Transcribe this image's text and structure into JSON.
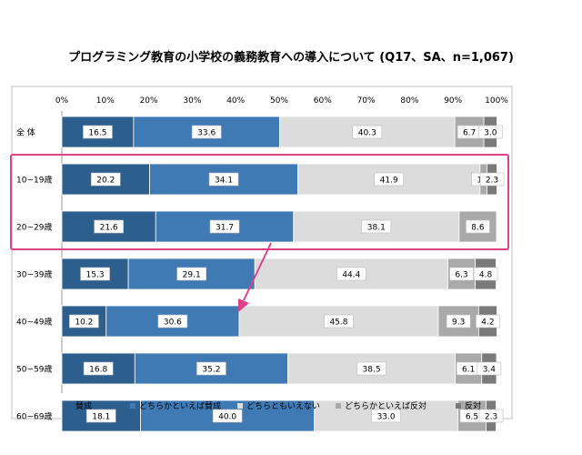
{
  "chart_data": {
    "type": "bar",
    "stacked": true,
    "orientation": "horizontal",
    "title": "プログラミング教育の小学校の義務教育への導入について (Q17、SA、n=1,067)",
    "x_ticks": [
      "0%",
      "10%",
      "20%",
      "30%",
      "40%",
      "50%",
      "60%",
      "70%",
      "80%",
      "90%",
      "100%"
    ],
    "xlim": [
      0,
      100
    ],
    "legend_position": "bottom",
    "categories": [
      "全 体",
      "10~19歳",
      "20~29歳",
      "30~39歳",
      "40~49歳",
      "50~59歳",
      "60~69歳"
    ],
    "series": [
      {
        "name": "賛成",
        "color": "#2d5f8e",
        "values": [
          16.5,
          20.2,
          21.6,
          15.3,
          10.2,
          16.8,
          18.1
        ]
      },
      {
        "name": "どちらかといえば賛成",
        "color": "#3f7ab5",
        "values": [
          33.6,
          34.1,
          31.7,
          29.1,
          30.6,
          35.2,
          40.0
        ]
      },
      {
        "name": "どちらともいえない",
        "color": "#dcdcdc",
        "values": [
          40.3,
          41.9,
          38.1,
          44.4,
          45.8,
          38.5,
          33.0
        ]
      },
      {
        "name": "どちらかといえば反対",
        "color": "#a9a9a9",
        "values": [
          6.7,
          1.6,
          8.6,
          6.3,
          9.3,
          6.1,
          6.5
        ]
      },
      {
        "name": "反対",
        "color": "#7a7a7a",
        "values": [
          3.0,
          2.3,
          0.0,
          4.8,
          4.2,
          3.4,
          2.3
        ]
      }
    ],
    "labels": [
      [
        "16.5",
        "33.6",
        "40.3",
        "6.7",
        "3.0"
      ],
      [
        "20.2",
        "34.1",
        "41.9",
        "1.6",
        "2.3"
      ],
      [
        "21.6",
        "31.7",
        "38.1",
        "8.6",
        ""
      ],
      [
        "15.3",
        "29.1",
        "44.4",
        "6.3",
        "4.8"
      ],
      [
        "10.2",
        "30.6",
        "45.8",
        "9.3",
        "4.2"
      ],
      [
        "16.8",
        "35.2",
        "38.5",
        "6.1",
        "3.4"
      ],
      [
        "18.1",
        "40.0",
        "33.0",
        "6.5",
        "2.3"
      ]
    ],
    "highlight": {
      "categories": [
        "10~19歳",
        "20~29歳"
      ],
      "color": "#e0408a"
    },
    "arrow_color": "#e0408a"
  }
}
